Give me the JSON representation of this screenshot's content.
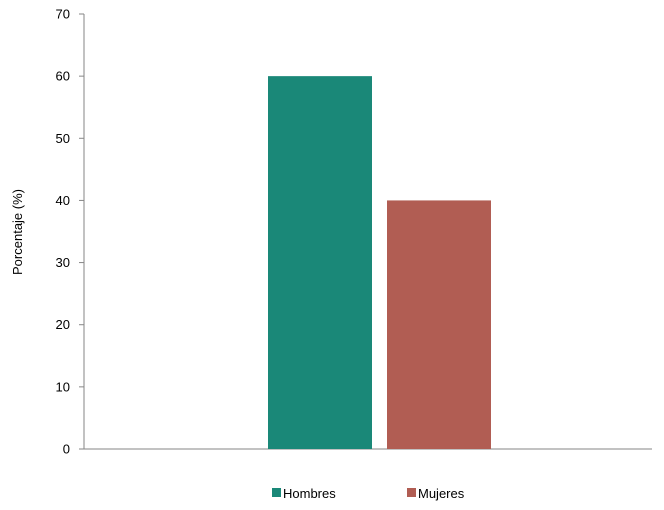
{
  "chart_data": {
    "type": "bar",
    "title": "",
    "xlabel": "",
    "ylabel": "Porcentaje (%)",
    "ylim": [
      0,
      70
    ],
    "yticks": [
      0,
      10,
      20,
      30,
      40,
      50,
      60,
      70
    ],
    "grid": false,
    "legend_position": "bottom",
    "series": [
      {
        "name": "Hombres",
        "value": 60,
        "color": "#1a8878"
      },
      {
        "name": "Mujeres",
        "value": 40,
        "color": "#b15d53"
      }
    ]
  }
}
